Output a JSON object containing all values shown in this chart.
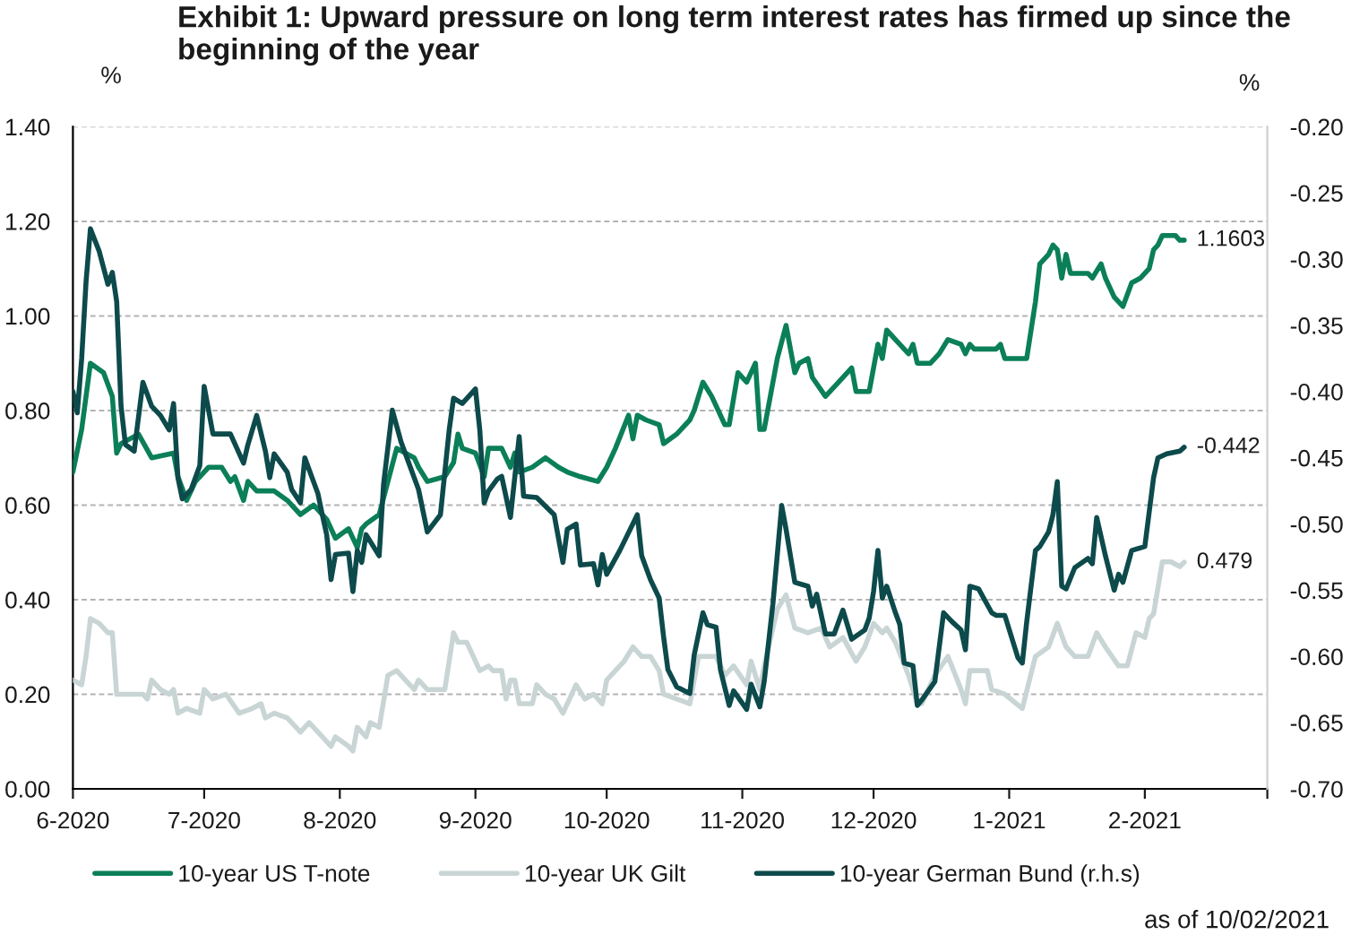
{
  "chart_data": {
    "type": "line",
    "title": "Exhibit 1: Upward pressure on long term interest rates has firmed up since the beginning of the year",
    "ylabel": "%",
    "y2label": "%",
    "annotations": [
      "as of 10/02/2021"
    ],
    "xlim": [
      "2020-06-01",
      "2021-03-01"
    ],
    "xticks": [
      {
        "value": "2020-06-01",
        "label": "6-2020"
      },
      {
        "value": "2020-07-01",
        "label": "7-2020"
      },
      {
        "value": "2020-08-01",
        "label": "8-2020"
      },
      {
        "value": "2020-09-01",
        "label": "9-2020"
      },
      {
        "value": "2020-10-01",
        "label": "10-2020"
      },
      {
        "value": "2020-11-01",
        "label": "11-2020"
      },
      {
        "value": "2020-12-01",
        "label": "12-2020"
      },
      {
        "value": "2021-01-01",
        "label": "1-2021"
      },
      {
        "value": "2021-02-01",
        "label": "2-2021"
      },
      {
        "value": "2021-03-01",
        "label": null
      }
    ],
    "ylim": [
      0,
      1.4
    ],
    "yticks": [
      {
        "value": 0,
        "label": "0.00"
      },
      {
        "value": 0.2,
        "label": "0.20"
      },
      {
        "value": 0.4,
        "label": "0.40"
      },
      {
        "value": 0.6,
        "label": "0.60"
      },
      {
        "value": 0.8,
        "label": "0.80"
      },
      {
        "value": 1.0,
        "label": "1.00"
      },
      {
        "value": 1.2,
        "label": "1.20"
      },
      {
        "value": 1.4,
        "label": "1.40"
      }
    ],
    "y2lim": [
      -0.7,
      -0.2
    ],
    "y2ticks": [
      {
        "value": -0.7,
        "label": "-0.70"
      },
      {
        "value": -0.65,
        "label": "-0.65"
      },
      {
        "value": -0.6,
        "label": "-0.60"
      },
      {
        "value": -0.55,
        "label": "-0.55"
      },
      {
        "value": -0.5,
        "label": "-0.50"
      },
      {
        "value": -0.45,
        "label": "-0.45"
      },
      {
        "value": -0.4,
        "label": "-0.40"
      },
      {
        "value": -0.35,
        "label": "-0.35"
      },
      {
        "value": -0.3,
        "label": "-0.30"
      },
      {
        "value": -0.25,
        "label": "-0.25"
      },
      {
        "value": -0.2,
        "label": "-0.20"
      }
    ],
    "grid": "y",
    "legend": "bottom",
    "line_style": "solid",
    "series": [
      {
        "name": "10-year US T-note",
        "color": "#0b7f58",
        "axis": "y",
        "x": [
          "2020-06-01",
          "2020-06-03",
          "2020-06-05",
          "2020-06-08",
          "2020-06-10",
          "2020-06-11",
          "2020-06-12",
          "2020-06-14",
          "2020-06-16",
          "2020-06-19",
          "2020-06-24",
          "2020-06-25",
          "2020-06-27",
          "2020-06-29",
          "2020-07-02",
          "2020-07-05",
          "2020-07-07",
          "2020-07-08",
          "2020-07-10",
          "2020-07-11",
          "2020-07-13",
          "2020-07-17",
          "2020-07-20",
          "2020-07-23",
          "2020-07-26",
          "2020-07-29",
          "2020-07-31",
          "2020-08-03",
          "2020-08-05",
          "2020-08-06",
          "2020-08-07",
          "2020-08-10",
          "2020-08-12",
          "2020-08-14",
          "2020-08-18",
          "2020-08-19",
          "2020-08-21",
          "2020-08-25",
          "2020-08-27",
          "2020-08-28",
          "2020-08-29",
          "2020-09-01",
          "2020-09-03",
          "2020-09-04",
          "2020-09-07",
          "2020-09-09",
          "2020-09-10",
          "2020-09-11",
          "2020-09-14",
          "2020-09-17",
          "2020-09-20",
          "2020-09-22",
          "2020-09-25",
          "2020-09-29",
          "2020-10-01",
          "2020-10-03",
          "2020-10-06",
          "2020-10-07",
          "2020-10-08",
          "2020-10-10",
          "2020-10-13",
          "2020-10-14",
          "2020-10-17",
          "2020-10-20",
          "2020-10-21",
          "2020-10-23",
          "2020-10-25",
          "2020-10-28",
          "2020-10-29",
          "2020-10-31",
          "2020-11-02",
          "2020-11-04",
          "2020-11-05",
          "2020-11-06",
          "2020-11-09",
          "2020-11-11",
          "2020-11-13",
          "2020-11-14",
          "2020-11-16",
          "2020-11-17",
          "2020-11-20",
          "2020-11-23",
          "2020-11-26",
          "2020-11-27",
          "2020-11-30",
          "2020-12-02",
          "2020-12-03",
          "2020-12-04",
          "2020-12-07",
          "2020-12-09",
          "2020-12-10",
          "2020-12-11",
          "2020-12-14",
          "2020-12-16",
          "2020-12-18",
          "2020-12-21",
          "2020-12-22",
          "2020-12-23",
          "2020-12-24",
          "2020-12-29",
          "2020-12-30",
          "2020-12-31",
          "2021-01-05",
          "2021-01-07",
          "2021-01-08",
          "2021-01-10",
          "2021-01-11",
          "2021-01-12",
          "2021-01-13",
          "2021-01-14",
          "2021-01-15",
          "2021-01-19",
          "2021-01-20",
          "2021-01-22",
          "2021-01-23",
          "2021-01-25",
          "2021-01-26",
          "2021-01-27",
          "2021-01-29",
          "2021-01-31",
          "2021-02-02",
          "2021-02-03",
          "2021-02-04",
          "2021-02-05",
          "2021-02-07",
          "2021-02-08",
          "2021-02-09",
          "2021-02-10"
        ],
        "values": [
          0.67,
          0.76,
          0.9,
          0.88,
          0.83,
          0.71,
          0.73,
          0.74,
          0.75,
          0.7,
          0.71,
          0.66,
          0.61,
          0.65,
          0.68,
          0.68,
          0.65,
          0.66,
          0.61,
          0.65,
          0.63,
          0.63,
          0.61,
          0.58,
          0.6,
          0.57,
          0.53,
          0.55,
          0.51,
          0.55,
          0.56,
          0.58,
          0.65,
          0.72,
          0.7,
          0.68,
          0.65,
          0.66,
          0.69,
          0.75,
          0.72,
          0.71,
          0.66,
          0.72,
          0.72,
          0.68,
          0.71,
          0.67,
          0.68,
          0.7,
          0.68,
          0.67,
          0.66,
          0.65,
          0.68,
          0.72,
          0.79,
          0.74,
          0.79,
          0.78,
          0.77,
          0.73,
          0.75,
          0.78,
          0.8,
          0.86,
          0.83,
          0.77,
          0.77,
          0.88,
          0.86,
          0.9,
          0.76,
          0.76,
          0.91,
          0.98,
          0.88,
          0.9,
          0.91,
          0.87,
          0.83,
          0.86,
          0.89,
          0.84,
          0.84,
          0.94,
          0.91,
          0.97,
          0.94,
          0.92,
          0.94,
          0.9,
          0.9,
          0.92,
          0.95,
          0.94,
          0.92,
          0.94,
          0.93,
          0.93,
          0.94,
          0.91,
          0.91,
          1.03,
          1.11,
          1.13,
          1.15,
          1.14,
          1.08,
          1.13,
          1.09,
          1.09,
          1.08,
          1.11,
          1.08,
          1.04,
          1.03,
          1.02,
          1.07,
          1.08,
          1.1,
          1.14,
          1.15,
          1.17,
          1.17,
          1.17,
          1.16,
          1.1603
        ],
        "value_labels": [
          null,
          null,
          null,
          null,
          null,
          null,
          null,
          null,
          null,
          null,
          null,
          null,
          null,
          null,
          null,
          null,
          null,
          null,
          null,
          null,
          null,
          null,
          null,
          null,
          null,
          null,
          null,
          null,
          null,
          null,
          null,
          null,
          null,
          null,
          null,
          null,
          null,
          null,
          null,
          null,
          null,
          null,
          null,
          null,
          null,
          null,
          null,
          null,
          null,
          null,
          null,
          null,
          null,
          null,
          null,
          null,
          null,
          null,
          null,
          null,
          null,
          null,
          null,
          null,
          null,
          null,
          null,
          null,
          null,
          null,
          null,
          null,
          null,
          null,
          null,
          null,
          null,
          null,
          null,
          null,
          null,
          null,
          null,
          null,
          null,
          null,
          null,
          null,
          null,
          null,
          null,
          null,
          null,
          null,
          null,
          null,
          null,
          null,
          null,
          null,
          null,
          null,
          null,
          null,
          null,
          null,
          null,
          null,
          null,
          null,
          null,
          null,
          null,
          null,
          null,
          null,
          null,
          null,
          null,
          null,
          null,
          null,
          null,
          null,
          null,
          null,
          null,
          "1.1603"
        ]
      },
      {
        "name": "10-year UK Gilt",
        "color": "#c9d5d5",
        "axis": "y",
        "x": [
          "2020-06-01",
          "2020-06-03",
          "2020-06-04",
          "2020-06-05",
          "2020-06-07",
          "2020-06-09",
          "2020-06-10",
          "2020-06-11",
          "2020-06-14",
          "2020-06-17",
          "2020-06-18",
          "2020-06-19",
          "2020-06-21",
          "2020-06-23",
          "2020-06-24",
          "2020-06-25",
          "2020-06-27",
          "2020-06-30",
          "2020-07-01",
          "2020-07-03",
          "2020-07-06",
          "2020-07-09",
          "2020-07-12",
          "2020-07-14",
          "2020-07-15",
          "2020-07-17",
          "2020-07-20",
          "2020-07-23",
          "2020-07-25",
          "2020-07-28",
          "2020-07-30",
          "2020-07-31",
          "2020-08-03",
          "2020-08-04",
          "2020-08-05",
          "2020-08-07",
          "2020-08-08",
          "2020-08-10",
          "2020-08-12",
          "2020-08-14",
          "2020-08-18",
          "2020-08-19",
          "2020-08-21",
          "2020-08-25",
          "2020-08-27",
          "2020-08-28",
          "2020-08-30",
          "2020-09-02",
          "2020-09-04",
          "2020-09-05",
          "2020-09-07",
          "2020-09-08",
          "2020-09-09",
          "2020-09-10",
          "2020-09-11",
          "2020-09-14",
          "2020-09-15",
          "2020-09-17",
          "2020-09-19",
          "2020-09-21",
          "2020-09-24",
          "2020-09-26",
          "2020-09-28",
          "2020-09-30",
          "2020-10-01",
          "2020-10-03",
          "2020-10-05",
          "2020-10-07",
          "2020-10-09",
          "2020-10-11",
          "2020-10-13",
          "2020-10-14",
          "2020-10-17",
          "2020-10-20",
          "2020-10-22",
          "2020-10-25",
          "2020-10-26",
          "2020-10-28",
          "2020-10-30",
          "2020-11-02",
          "2020-11-03",
          "2020-11-05",
          "2020-11-06",
          "2020-11-09",
          "2020-11-11",
          "2020-11-13",
          "2020-11-16",
          "2020-11-19",
          "2020-11-21",
          "2020-11-24",
          "2020-11-27",
          "2020-11-29",
          "2020-12-01",
          "2020-12-03",
          "2020-12-04",
          "2020-12-06",
          "2020-12-09",
          "2020-12-11",
          "2020-12-12",
          "2020-12-15",
          "2020-12-18",
          "2020-12-21",
          "2020-12-22",
          "2020-12-23",
          "2020-12-27",
          "2020-12-28",
          "2020-12-31",
          "2021-01-04",
          "2021-01-07",
          "2021-01-10",
          "2021-01-12",
          "2021-01-14",
          "2021-01-16",
          "2021-01-19",
          "2021-01-21",
          "2021-01-23",
          "2021-01-26",
          "2021-01-28",
          "2021-01-30",
          "2021-02-01",
          "2021-02-02",
          "2021-02-03",
          "2021-02-05",
          "2021-02-07",
          "2021-02-09",
          "2021-02-10"
        ],
        "values": [
          0.23,
          0.22,
          0.28,
          0.36,
          0.35,
          0.33,
          0.33,
          0.2,
          0.2,
          0.2,
          0.19,
          0.23,
          0.21,
          0.2,
          0.21,
          0.16,
          0.17,
          0.16,
          0.21,
          0.19,
          0.2,
          0.16,
          0.17,
          0.18,
          0.15,
          0.16,
          0.15,
          0.12,
          0.14,
          0.11,
          0.09,
          0.11,
          0.09,
          0.08,
          0.13,
          0.11,
          0.14,
          0.13,
          0.24,
          0.25,
          0.21,
          0.23,
          0.21,
          0.21,
          0.33,
          0.31,
          0.31,
          0.25,
          0.26,
          0.25,
          0.25,
          0.19,
          0.23,
          0.23,
          0.18,
          0.18,
          0.22,
          0.2,
          0.19,
          0.16,
          0.22,
          0.19,
          0.2,
          0.18,
          0.23,
          0.25,
          0.27,
          0.3,
          0.28,
          0.28,
          0.25,
          0.2,
          0.19,
          0.18,
          0.28,
          0.28,
          0.28,
          0.24,
          0.26,
          0.22,
          0.27,
          0.21,
          0.26,
          0.38,
          0.41,
          0.34,
          0.33,
          0.34,
          0.3,
          0.32,
          0.27,
          0.3,
          0.35,
          0.33,
          0.34,
          0.31,
          0.24,
          0.18,
          0.18,
          0.24,
          0.28,
          0.21,
          0.18,
          0.25,
          0.25,
          0.21,
          0.2,
          0.17,
          0.28,
          0.3,
          0.35,
          0.3,
          0.28,
          0.28,
          0.33,
          0.3,
          0.26,
          0.26,
          0.33,
          0.32,
          0.36,
          0.37,
          0.48,
          0.48,
          0.47,
          0.479
        ],
        "value_labels": [
          null,
          null,
          null,
          null,
          null,
          null,
          null,
          null,
          null,
          null,
          null,
          null,
          null,
          null,
          null,
          null,
          null,
          null,
          null,
          null,
          null,
          null,
          null,
          null,
          null,
          null,
          null,
          null,
          null,
          null,
          null,
          null,
          null,
          null,
          null,
          null,
          null,
          null,
          null,
          null,
          null,
          null,
          null,
          null,
          null,
          null,
          null,
          null,
          null,
          null,
          null,
          null,
          null,
          null,
          null,
          null,
          null,
          null,
          null,
          null,
          null,
          null,
          null,
          null,
          null,
          null,
          null,
          null,
          null,
          null,
          null,
          null,
          null,
          null,
          null,
          null,
          null,
          null,
          null,
          null,
          null,
          null,
          null,
          null,
          null,
          null,
          null,
          null,
          null,
          null,
          null,
          null,
          null,
          null,
          null,
          null,
          null,
          null,
          null,
          null,
          null,
          null,
          null,
          null,
          null,
          null,
          null,
          null,
          null,
          null,
          null,
          null,
          null,
          null,
          null,
          null,
          null,
          null,
          null,
          null,
          null,
          null,
          null,
          null,
          null,
          "0.479"
        ]
      },
      {
        "name": "10-year German Bund (r.h.s)",
        "color": "#0d4a4b",
        "axis": "y2",
        "x": [
          "2020-06-01",
          "2020-06-02",
          "2020-06-03",
          "2020-06-04",
          "2020-06-05",
          "2020-06-07",
          "2020-06-09",
          "2020-06-10",
          "2020-06-11",
          "2020-06-12",
          "2020-06-13",
          "2020-06-15",
          "2020-06-17",
          "2020-06-19",
          "2020-06-21",
          "2020-06-23",
          "2020-06-24",
          "2020-06-25",
          "2020-06-26",
          "2020-06-28",
          "2020-06-30",
          "2020-07-01",
          "2020-07-03",
          "2020-07-07",
          "2020-07-10",
          "2020-07-11",
          "2020-07-13",
          "2020-07-15",
          "2020-07-16",
          "2020-07-17",
          "2020-07-20",
          "2020-07-21",
          "2020-07-23",
          "2020-07-24",
          "2020-07-27",
          "2020-07-28",
          "2020-07-29",
          "2020-07-30",
          "2020-07-31",
          "2020-08-03",
          "2020-08-04",
          "2020-08-05",
          "2020-08-06",
          "2020-08-07",
          "2020-08-10",
          "2020-08-11",
          "2020-08-13",
          "2020-08-15",
          "2020-08-19",
          "2020-08-21",
          "2020-08-24",
          "2020-08-26",
          "2020-08-27",
          "2020-08-29",
          "2020-09-01",
          "2020-09-02",
          "2020-09-03",
          "2020-09-04",
          "2020-09-06",
          "2020-09-07",
          "2020-09-09",
          "2020-09-11",
          "2020-09-12",
          "2020-09-15",
          "2020-09-19",
          "2020-09-21",
          "2020-09-22",
          "2020-09-24",
          "2020-09-25",
          "2020-09-28",
          "2020-09-29",
          "2020-09-30",
          "2020-10-01",
          "2020-10-04",
          "2020-10-08",
          "2020-10-09",
          "2020-10-11",
          "2020-10-13",
          "2020-10-14",
          "2020-10-15",
          "2020-10-17",
          "2020-10-20",
          "2020-10-21",
          "2020-10-23",
          "2020-10-24",
          "2020-10-26",
          "2020-10-27",
          "2020-10-29",
          "2020-10-30",
          "2020-11-02",
          "2020-11-03",
          "2020-11-05",
          "2020-11-06",
          "2020-11-08",
          "2020-11-10",
          "2020-11-11",
          "2020-11-13",
          "2020-11-16",
          "2020-11-17",
          "2020-11-18",
          "2020-11-20",
          "2020-11-22",
          "2020-11-24",
          "2020-11-26",
          "2020-11-29",
          "2020-11-30",
          "2020-12-01",
          "2020-12-02",
          "2020-12-03",
          "2020-12-04",
          "2020-12-06",
          "2020-12-07",
          "2020-12-08",
          "2020-12-10",
          "2020-12-11",
          "2020-12-12",
          "2020-12-15",
          "2020-12-17",
          "2020-12-19",
          "2020-12-21",
          "2020-12-22",
          "2020-12-23",
          "2020-12-25",
          "2020-12-28",
          "2020-12-29",
          "2020-12-31",
          "2021-01-03",
          "2021-01-04",
          "2021-01-05",
          "2021-01-07",
          "2021-01-08",
          "2021-01-10",
          "2021-01-11",
          "2021-01-12",
          "2021-01-13",
          "2021-01-14",
          "2021-01-16",
          "2021-01-19",
          "2021-01-20",
          "2021-01-21",
          "2021-01-23",
          "2021-01-25",
          "2021-01-26",
          "2021-01-27",
          "2021-01-29",
          "2021-02-01",
          "2021-02-03",
          "2021-02-04",
          "2021-02-06",
          "2021-02-09",
          "2021-02-10"
        ],
        "values": [
          -0.4,
          -0.416,
          -0.375,
          -0.317,
          -0.277,
          -0.294,
          -0.319,
          -0.31,
          -0.332,
          -0.411,
          -0.44,
          -0.445,
          -0.393,
          -0.411,
          -0.418,
          -0.429,
          -0.409,
          -0.465,
          -0.481,
          -0.474,
          -0.456,
          -0.396,
          -0.432,
          -0.432,
          -0.454,
          -0.44,
          -0.418,
          -0.445,
          -0.465,
          -0.447,
          -0.461,
          -0.474,
          -0.484,
          -0.45,
          -0.477,
          -0.493,
          -0.508,
          -0.542,
          -0.523,
          -0.522,
          -0.551,
          -0.52,
          -0.529,
          -0.508,
          -0.524,
          -0.47,
          -0.414,
          -0.438,
          -0.474,
          -0.506,
          -0.493,
          -0.429,
          -0.405,
          -0.409,
          -0.398,
          -0.429,
          -0.484,
          -0.475,
          -0.466,
          -0.464,
          -0.495,
          -0.434,
          -0.479,
          -0.48,
          -0.493,
          -0.529,
          -0.504,
          -0.5,
          -0.531,
          -0.53,
          -0.546,
          -0.523,
          -0.538,
          -0.52,
          -0.493,
          -0.524,
          -0.542,
          -0.556,
          -0.585,
          -0.61,
          -0.623,
          -0.628,
          -0.599,
          -0.567,
          -0.576,
          -0.578,
          -0.61,
          -0.637,
          -0.626,
          -0.64,
          -0.621,
          -0.638,
          -0.619,
          -0.56,
          -0.486,
          -0.504,
          -0.544,
          -0.547,
          -0.562,
          -0.553,
          -0.583,
          -0.583,
          -0.565,
          -0.587,
          -0.58,
          -0.571,
          -0.551,
          -0.52,
          -0.556,
          -0.547,
          -0.567,
          -0.576,
          -0.605,
          -0.607,
          -0.637,
          -0.633,
          -0.619,
          -0.567,
          -0.574,
          -0.58,
          -0.595,
          -0.547,
          -0.549,
          -0.567,
          -0.569,
          -0.569,
          -0.601,
          -0.605,
          -0.574,
          -0.52,
          -0.517,
          -0.506,
          -0.493,
          -0.468,
          -0.547,
          -0.549,
          -0.533,
          -0.526,
          -0.53,
          -0.495,
          -0.524,
          -0.55,
          -0.538,
          -0.544,
          -0.52,
          -0.517,
          -0.465,
          -0.45,
          -0.447,
          -0.445,
          -0.442
        ],
        "value_labels": [
          null,
          null,
          null,
          null,
          null,
          null,
          null,
          null,
          null,
          null,
          null,
          null,
          null,
          null,
          null,
          null,
          null,
          null,
          null,
          null,
          null,
          null,
          null,
          null,
          null,
          null,
          null,
          null,
          null,
          null,
          null,
          null,
          null,
          null,
          null,
          null,
          null,
          null,
          null,
          null,
          null,
          null,
          null,
          null,
          null,
          null,
          null,
          null,
          null,
          null,
          null,
          null,
          null,
          null,
          null,
          null,
          null,
          null,
          null,
          null,
          null,
          null,
          null,
          null,
          null,
          null,
          null,
          null,
          null,
          null,
          null,
          null,
          null,
          null,
          null,
          null,
          null,
          null,
          null,
          null,
          null,
          null,
          null,
          null,
          null,
          null,
          null,
          null,
          null,
          null,
          null,
          null,
          null,
          null,
          null,
          null,
          null,
          null,
          null,
          null,
          null,
          null,
          null,
          null,
          null,
          null,
          null,
          null,
          null,
          null,
          null,
          null,
          null,
          null,
          null,
          null,
          null,
          null,
          null,
          null,
          null,
          null,
          null,
          null,
          null,
          null,
          null,
          null,
          null,
          null,
          null,
          null,
          null,
          null,
          null,
          null,
          null,
          null,
          null,
          null,
          null,
          null,
          null,
          null,
          null,
          null,
          null,
          null,
          null,
          null,
          "-0.442"
        ]
      }
    ]
  }
}
